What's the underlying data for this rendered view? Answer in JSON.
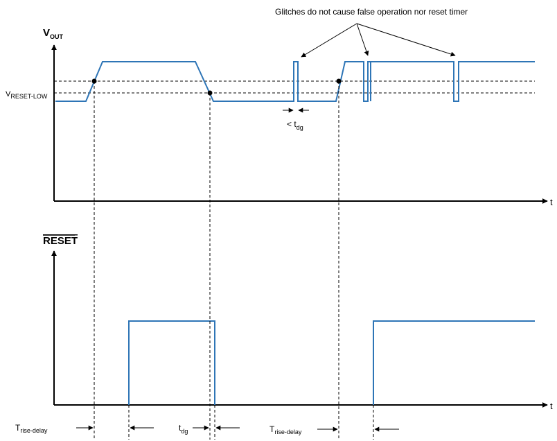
{
  "annotation": "Glitches do not cause false operation nor reset timer",
  "vout_axis": {
    "main": "V",
    "sub": "OUT"
  },
  "reset_axis": {
    "text": "RESET"
  },
  "threshold_label": {
    "main": "V",
    "sub": "RESET-LOW"
  },
  "time_axis_label": "t",
  "glitch_width_label": {
    "prefix": "< t",
    "sub": "dg"
  },
  "delays": {
    "rise_delay_1": {
      "main": "T",
      "sub": "rise-delay"
    },
    "deglitch": {
      "main": "t",
      "sub": "dg"
    },
    "rise_delay_2": {
      "main": "T",
      "sub": "rise-delay"
    }
  },
  "colors": {
    "waveform": "#2e75b6",
    "axes": "#000000"
  }
}
